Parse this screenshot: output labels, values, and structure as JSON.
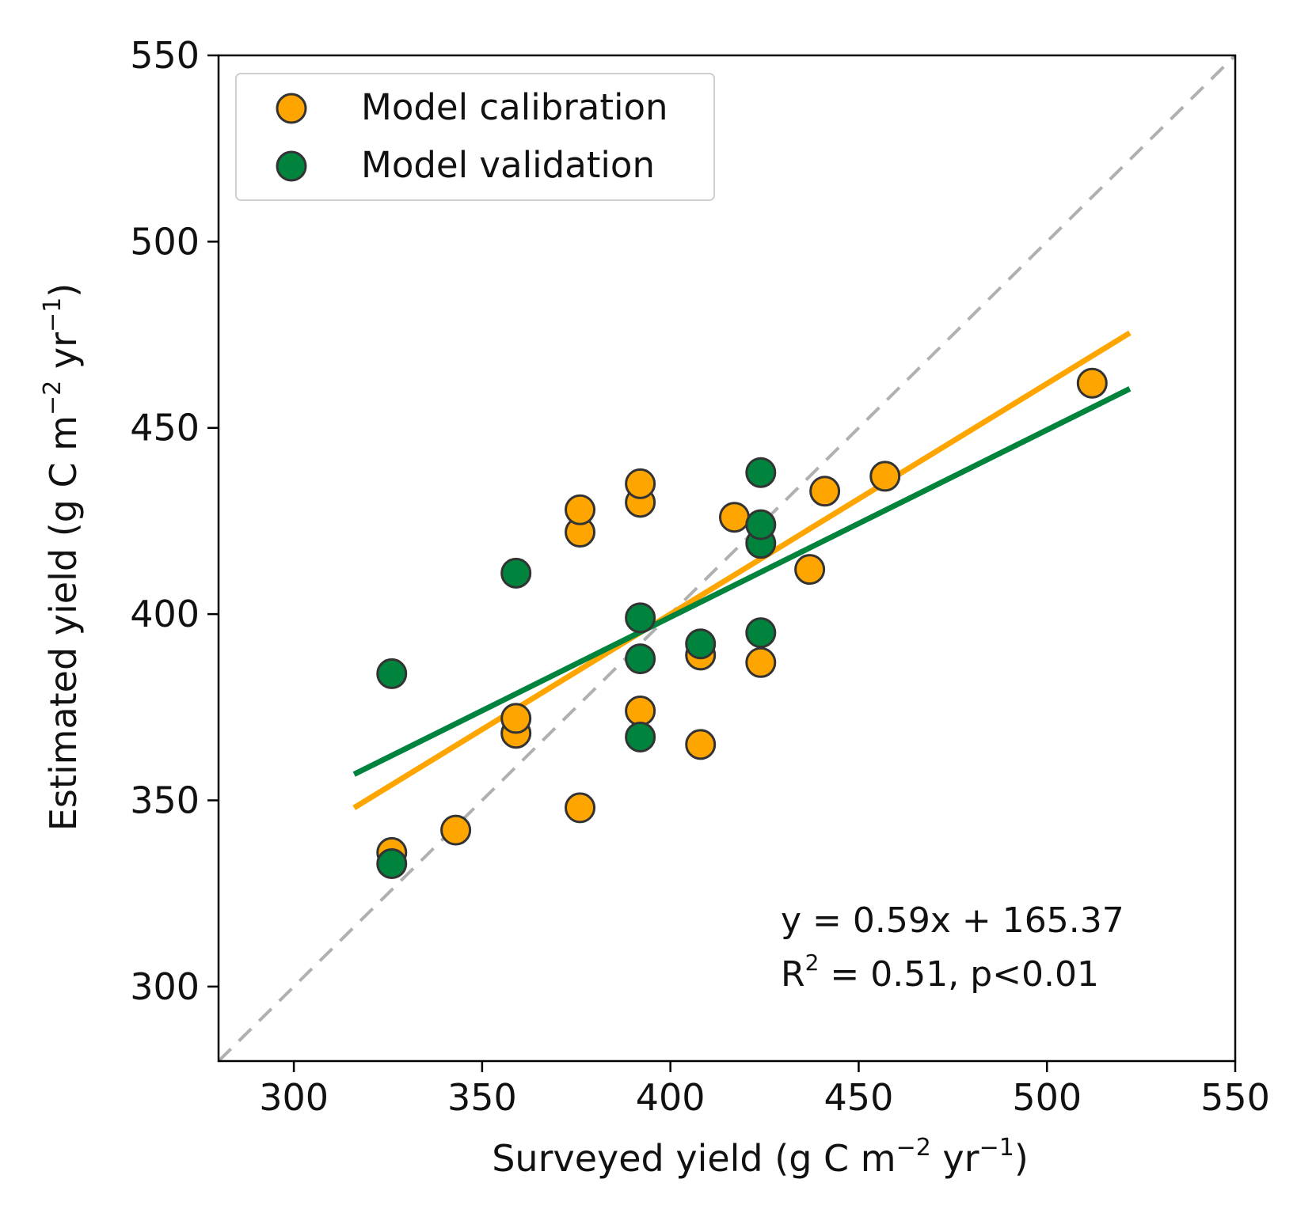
{
  "chart_data": {
    "type": "scatter",
    "title": "",
    "xlabel": "Surveyed yield (g C m",
    "ylabel": "Estimated yield (g C m",
    "unit_m_exponent": "−2",
    "unit_yr_text": " yr",
    "unit_yr_exponent": "−1",
    "unit_close": ")",
    "xlim": [
      280,
      550
    ],
    "ylim": [
      280,
      550
    ],
    "x_ticks": [
      "300",
      "350",
      "400",
      "450",
      "500",
      "550"
    ],
    "y_ticks": [
      "300",
      "350",
      "400",
      "450",
      "500",
      "550"
    ],
    "grid": false,
    "legend_position": "top-left",
    "series": [
      {
        "name": "Model calibration",
        "color": "#FFA500",
        "points": [
          [
            326,
            336
          ],
          [
            343,
            342
          ],
          [
            359,
            368
          ],
          [
            359,
            372
          ],
          [
            376,
            348
          ],
          [
            376,
            422
          ],
          [
            376,
            428
          ],
          [
            392,
            374
          ],
          [
            392,
            430
          ],
          [
            392,
            435
          ],
          [
            408,
            365
          ],
          [
            408,
            389
          ],
          [
            417,
            426
          ],
          [
            424,
            387
          ],
          [
            437,
            412
          ],
          [
            441,
            433
          ],
          [
            457,
            437
          ],
          [
            512,
            462
          ]
        ]
      },
      {
        "name": "Model validation",
        "color": "#00843D",
        "points": [
          [
            326,
            333
          ],
          [
            326,
            384
          ],
          [
            359,
            411
          ],
          [
            392,
            367
          ],
          [
            392,
            388
          ],
          [
            392,
            399
          ],
          [
            408,
            392
          ],
          [
            424,
            395
          ],
          [
            424,
            419
          ],
          [
            424,
            424
          ],
          [
            424,
            438
          ]
        ]
      }
    ],
    "fit_lines": [
      {
        "name": "calibration fit",
        "color": "#FFA500",
        "x": [
          316,
          522
        ],
        "y": [
          348,
          475.5
        ]
      },
      {
        "name": "validation fit",
        "color": "#00843D",
        "x": [
          316,
          522
        ],
        "y": [
          357,
          460.5
        ]
      }
    ],
    "reference_line": {
      "name": "1:1 line",
      "color": "#B0B0B0",
      "x": [
        280,
        550
      ],
      "y": [
        280,
        550
      ]
    },
    "annotations": {
      "equation": "y = 0.59x + 165.37",
      "r2_prefix": "R",
      "r2_exponent": "2",
      "r2_rest": " = 0.51, p<0.01"
    }
  }
}
